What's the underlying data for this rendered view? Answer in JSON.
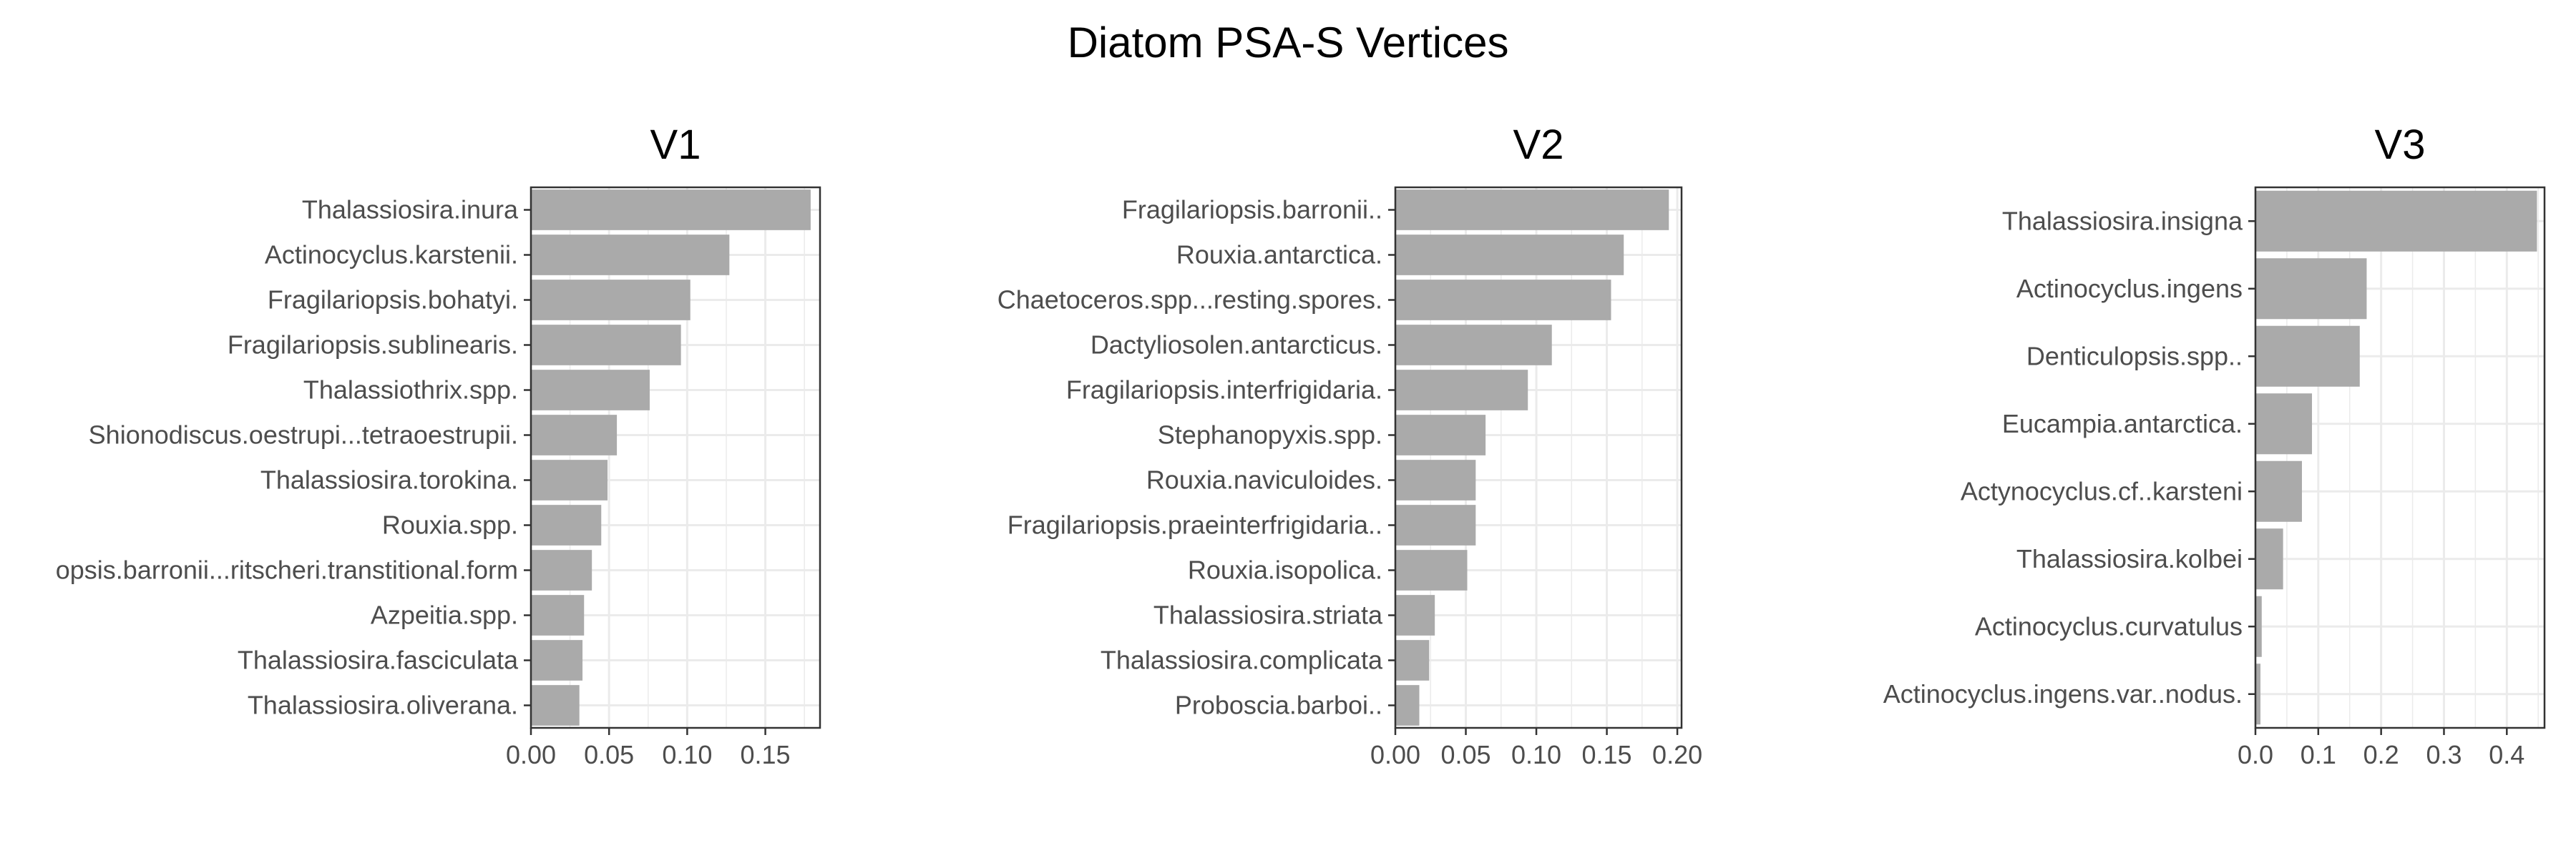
{
  "figure": {
    "title": "Diatom PSA-S Vertices"
  },
  "colors": {
    "bar": "#aaaaaa",
    "grid": "#ebebeb",
    "frame": "#333333",
    "text": "#4d4d4d"
  },
  "chart_data": [
    {
      "type": "bar",
      "orientation": "horizontal",
      "title": "V1",
      "xlabel": "",
      "ylabel": "",
      "xlim": [
        0,
        0.185
      ],
      "xticks": [
        0.0,
        0.05,
        0.1,
        0.15
      ],
      "xtick_labels": [
        "0.00",
        "0.05",
        "0.10",
        "0.15"
      ],
      "grid": true,
      "categories": [
        "Thalassiosira.inura",
        "Actinocyclus.karstenii.",
        "Fragilariopsis.bohatyi.",
        "Fragilariopsis.sublinearis.",
        "Thalassiothrix.spp.",
        "Shionodiscus.oestrupi...tetraoestrupii.",
        "Thalassiosira.torokina.",
        "Rouxia.spp.",
        "opsis.barronii...ritscheri.transtitional.form",
        "Azpeitia.spp.",
        "Thalassiosira.fasciculata",
        "Thalassiosira.oliverana."
      ],
      "values": [
        0.179,
        0.127,
        0.102,
        0.096,
        0.076,
        0.055,
        0.049,
        0.045,
        0.039,
        0.034,
        0.033,
        0.031
      ]
    },
    {
      "type": "bar",
      "orientation": "horizontal",
      "title": "V2",
      "xlabel": "",
      "ylabel": "",
      "xlim": [
        0,
        0.203
      ],
      "xticks": [
        0.0,
        0.05,
        0.1,
        0.15,
        0.2
      ],
      "xtick_labels": [
        "0.00",
        "0.05",
        "0.10",
        "0.15",
        "0.20"
      ],
      "grid": true,
      "categories": [
        "Fragilariopsis.barronii..",
        "Rouxia.antarctica.",
        "Chaetoceros.spp...resting.spores.",
        "Dactyliosolen.antarcticus.",
        "Fragilariopsis.interfrigidaria.",
        "Stephanopyxis.spp.",
        "Rouxia.naviculoides.",
        "Fragilariopsis.praeinterfrigidaria..",
        "Rouxia.isopolica.",
        "Thalassiosira.striata",
        "Thalassiosira.complicata",
        "Proboscia.barboi.."
      ],
      "values": [
        0.194,
        0.162,
        0.153,
        0.111,
        0.094,
        0.064,
        0.057,
        0.057,
        0.051,
        0.028,
        0.024,
        0.017
      ]
    },
    {
      "type": "bar",
      "orientation": "horizontal",
      "title": "V3",
      "xlabel": "",
      "ylabel": "",
      "xlim": [
        0,
        0.46
      ],
      "xticks": [
        0.0,
        0.1,
        0.2,
        0.3,
        0.4
      ],
      "xtick_labels": [
        "0.0",
        "0.1",
        "0.2",
        "0.3",
        "0.4"
      ],
      "grid": true,
      "categories": [
        "Thalassiosira.insigna",
        "Actinocyclus.ingens",
        "Denticulopsis.spp..",
        "Eucampia.antarctica.",
        "Actynocyclus.cf..karsteni",
        "Thalassiosira.kolbei",
        "Actinocyclus.curvatulus",
        "Actinocyclus.ingens.var..nodus."
      ],
      "values": [
        0.448,
        0.177,
        0.166,
        0.09,
        0.074,
        0.044,
        0.01,
        0.008
      ]
    }
  ]
}
